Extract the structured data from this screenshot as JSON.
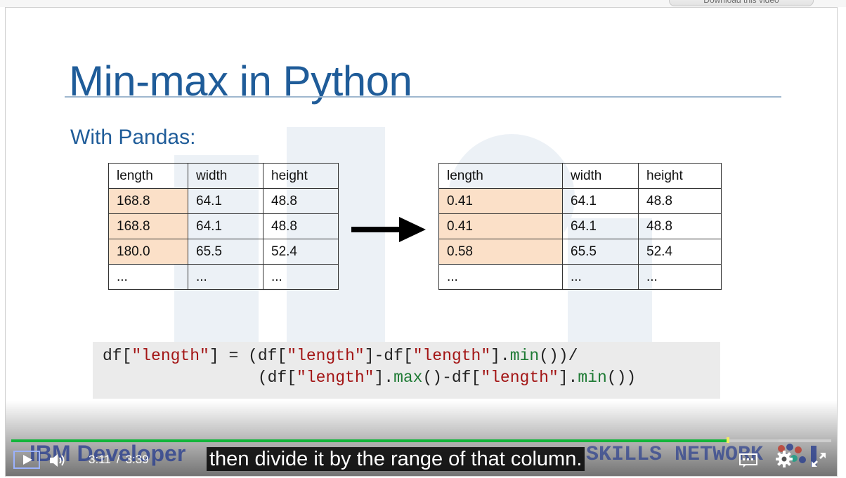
{
  "download_button": {
    "label": "Download this video"
  },
  "slide": {
    "title": "Min-max in Python",
    "subtitle": "With Pandas:",
    "table_before": {
      "headers": [
        "length",
        "width",
        "height"
      ],
      "rows": [
        [
          "168.8",
          "64.1",
          "48.8"
        ],
        [
          "168.8",
          "64.1",
          "48.8"
        ],
        [
          "180.0",
          "65.5",
          "52.4"
        ],
        [
          "...",
          "...",
          "..."
        ]
      ]
    },
    "table_after": {
      "headers": [
        "length",
        "width",
        "height"
      ],
      "rows": [
        [
          "0.41",
          "64.1",
          "48.8"
        ],
        [
          "0.41",
          "64.1",
          "48.8"
        ],
        [
          "0.58",
          "65.5",
          "52.4"
        ],
        [
          "...",
          "...",
          "..."
        ]
      ]
    },
    "code": {
      "line1": {
        "a": "df[",
        "b": "\"length\"",
        "c": "] = (df[",
        "d": "\"length\"",
        "e": "]-df[",
        "f": "\"length\"",
        "g": "].",
        "h": "min",
        "i": "())/"
      },
      "line2": {
        "a": "                (df[",
        "b": "\"length\"",
        "c": "].",
        "d": "max",
        "e": "()-df[",
        "f": "\"length\"",
        "g": "].",
        "h": "min",
        "i": "())"
      }
    },
    "highlight_color": "#fbe0c8",
    "title_color": "#1f5c99"
  },
  "player": {
    "current_time": "3:11",
    "separator": "/",
    "duration": "3:39",
    "progress_fraction": 0.874,
    "buffered_fraction": 0.936,
    "caption": "then divide it by the range of that column.",
    "brand_left": "IBM Developer",
    "brand_right": "SKILLS NETWORK",
    "accent_color": "#12b53a",
    "icons": {
      "play": "play-icon",
      "volume": "volume-icon",
      "captions": "captions-icon",
      "settings": "gear-icon",
      "fullscreen": "fullscreen-icon"
    }
  }
}
